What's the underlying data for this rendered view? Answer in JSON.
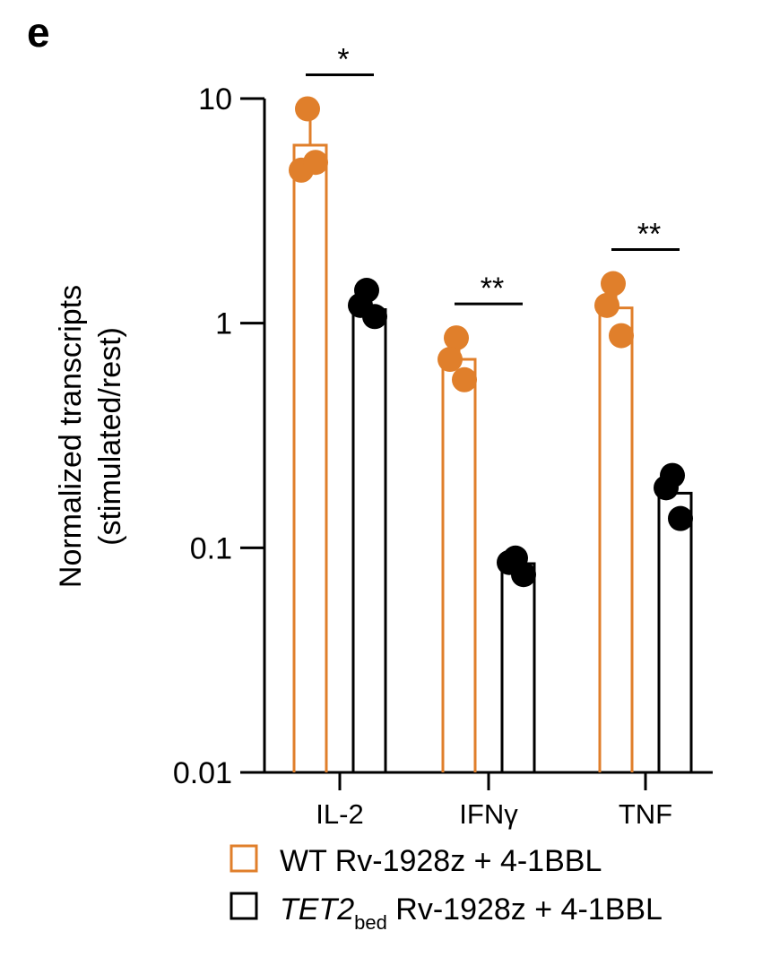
{
  "panel_label": "e",
  "colors": {
    "wt": "#E07F2B",
    "tet2": "#000000"
  },
  "legend": {
    "wt_label": "WT Rv-1928z + 4-1BBL",
    "tet2_gene": "TET2",
    "tet2_sub": "bed",
    "tet2_rest": " Rv-1928z + 4-1BBL"
  },
  "chart_data": {
    "type": "bar",
    "scale": "log",
    "ylabel_line1": "Normalized transcripts",
    "ylabel_line2": "(stimulated/rest)",
    "xlabel": "",
    "ylim": [
      0.01,
      10
    ],
    "yticks": [
      10,
      1,
      0.1,
      0.01
    ],
    "ytick_labels": [
      "10",
      "1",
      "0.1",
      "0.01"
    ],
    "categories": [
      "IL-2",
      "IFNγ",
      "TNF"
    ],
    "series": [
      {
        "name": "WT Rv-1928z + 4-1BBL",
        "color": "#E07F2B",
        "values": [
          6.2,
          0.69,
          1.17
        ],
        "points": [
          [
            9.0,
            4.8,
            5.2
          ],
          [
            0.86,
            0.69,
            0.56
          ],
          [
            1.5,
            1.2,
            0.88
          ]
        ]
      },
      {
        "name": "TET2bed Rv-1928z + 4-1BBL",
        "color": "#000000",
        "values": [
          1.15,
          0.085,
          0.175
        ],
        "points": [
          [
            1.4,
            1.2,
            1.07
          ],
          [
            0.09,
            0.086,
            0.076
          ],
          [
            0.21,
            0.185,
            0.135
          ]
        ]
      }
    ],
    "significance": [
      "*",
      "**",
      "**"
    ],
    "grid": false,
    "legend_position": "bottom"
  }
}
